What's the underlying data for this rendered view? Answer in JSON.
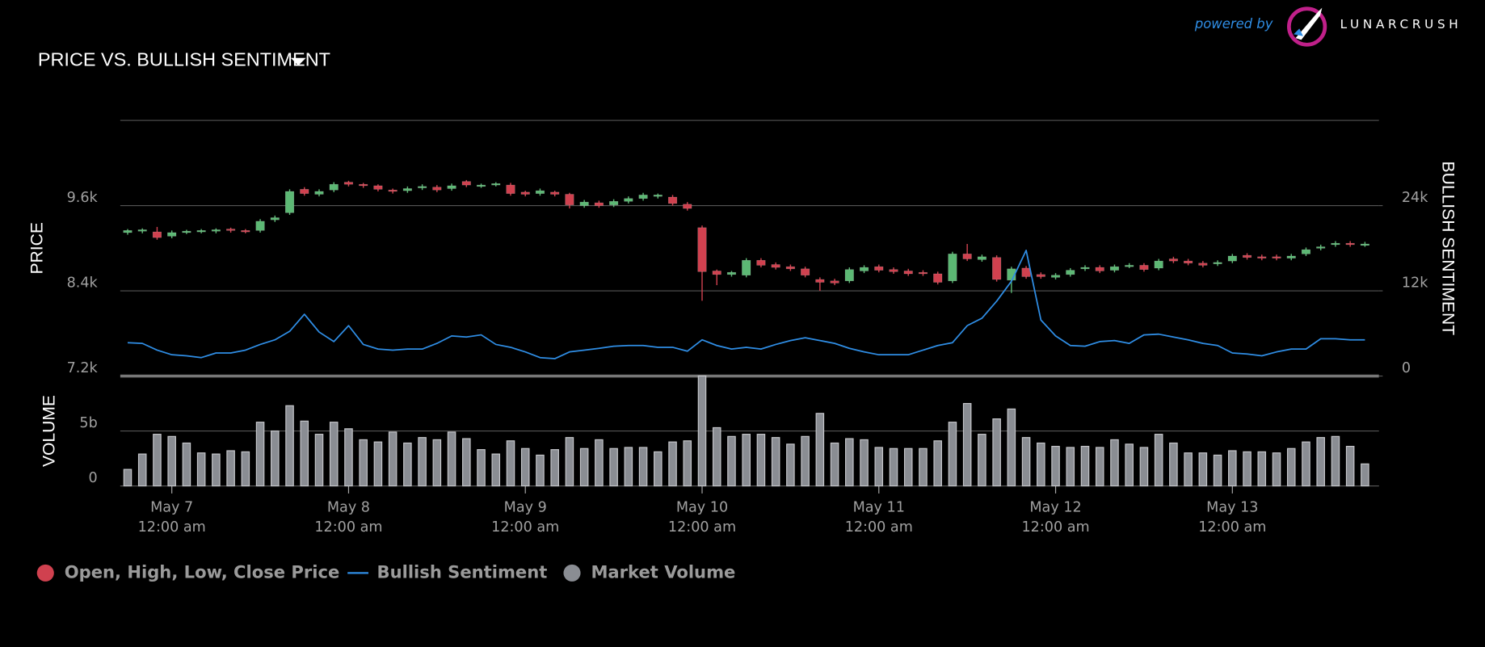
{
  "chart_data": {
    "type": "candlestick",
    "title": "PRICE VS. BULLISH SENTIMENT",
    "y_label": "PRICE",
    "y2_label": "BULLISH SENTIMENT",
    "volume_label": "VOLUME",
    "ylim": [
      7200,
      10800
    ],
    "yticks": [
      {
        "value": 7200,
        "label": "7.2k"
      },
      {
        "value": 8400,
        "label": "8.4k"
      },
      {
        "value": 9600,
        "label": "9.6k"
      }
    ],
    "y2lim": [
      0,
      36000
    ],
    "y2ticks": [
      0,
      {
        "value": 12000,
        "label": "12k"
      },
      {
        "value": 24000,
        "label": "24k"
      }
    ],
    "volume_lim": [
      0,
      10
    ],
    "volume_ticks": [
      0,
      {
        "value": 5,
        "label": "5b"
      }
    ],
    "xticks": [
      {
        "value": 3,
        "label": [
          "May 7",
          "12:00 am"
        ]
      },
      {
        "value": 15,
        "label": [
          "May 8",
          "12:00 am"
        ]
      },
      {
        "value": 27,
        "label": [
          "May 9",
          "12:00 am"
        ]
      },
      {
        "value": 39,
        "label": [
          "May 10",
          "12:00 am"
        ]
      },
      {
        "value": 51,
        "label": [
          "May 11",
          "12:00 am"
        ]
      },
      {
        "value": 63,
        "label": [
          "May 12",
          "12:00 am"
        ]
      },
      {
        "value": 75,
        "label": [
          "May 13",
          "12:00 am"
        ]
      }
    ],
    "series": [
      {
        "name": "Open, High, Low, Close Price",
        "type": "candlestick",
        "color": "#d0414f",
        "up_color": "#5cb874",
        "open": [
          9220,
          9240,
          9230,
          9170,
          9230,
          9235,
          9240,
          9270,
          9250,
          9250,
          9400,
          9500,
          9830,
          9760,
          9820,
          9930,
          9900,
          9880,
          9820,
          9810,
          9850,
          9860,
          9840,
          9940,
          9880,
          9900,
          9890,
          9790,
          9770,
          9790,
          9760,
          9600,
          9640,
          9610,
          9660,
          9700,
          9730,
          9720,
          9620,
          9290,
          8680,
          8630,
          8620,
          8830,
          8770,
          8740,
          8710,
          8560,
          8540,
          8540,
          8680,
          8740,
          8700,
          8680,
          8660,
          8640,
          8540,
          8920,
          8840,
          8870,
          8550,
          8720,
          8630,
          8590,
          8630,
          8710,
          8730,
          8690,
          8750,
          8760,
          8720,
          8850,
          8820,
          8790,
          8780,
          8820,
          8900,
          8880,
          8880,
          8860,
          8920,
          9000,
          9050,
          9070,
          9050
        ],
        "high": [
          9270,
          9280,
          9300,
          9250,
          9260,
          9270,
          9280,
          9290,
          9270,
          9410,
          9460,
          9830,
          9860,
          9830,
          9930,
          9950,
          9920,
          9900,
          9840,
          9870,
          9900,
          9890,
          9910,
          9960,
          9910,
          9930,
          9920,
          9810,
          9840,
          9810,
          9780,
          9680,
          9670,
          9690,
          9730,
          9780,
          9770,
          9750,
          9650,
          9320,
          8700,
          8680,
          8860,
          8860,
          8800,
          8770,
          8740,
          8590,
          8570,
          8730,
          8760,
          8770,
          8730,
          8710,
          8690,
          8670,
          8950,
          9060,
          8910,
          8900,
          8740,
          8750,
          8660,
          8650,
          8720,
          8760,
          8760,
          8770,
          8790,
          8790,
          8850,
          8880,
          8850,
          8820,
          8830,
          8920,
          8930,
          8910,
          8910,
          8920,
          9010,
          9050,
          9100,
          9100,
          9090
        ],
        "low": [
          9190,
          9210,
          9120,
          9140,
          9200,
          9210,
          9210,
          9220,
          9210,
          9220,
          9370,
          9470,
          9740,
          9730,
          9790,
          9870,
          9850,
          9800,
          9770,
          9780,
          9820,
          9790,
          9810,
          9860,
          9850,
          9870,
          9740,
          9730,
          9740,
          9730,
          9560,
          9570,
          9570,
          9580,
          9630,
          9670,
          9700,
          9600,
          9530,
          8260,
          8480,
          8600,
          8590,
          8730,
          8700,
          8680,
          8590,
          8400,
          8480,
          8510,
          8650,
          8660,
          8640,
          8610,
          8610,
          8490,
          8510,
          8820,
          8810,
          8530,
          8370,
          8570,
          8570,
          8560,
          8600,
          8680,
          8650,
          8660,
          8720,
          8670,
          8690,
          8790,
          8760,
          8730,
          8750,
          8790,
          8840,
          8830,
          8830,
          8830,
          8890,
          8970,
          9020,
          9020,
          9020
        ],
        "close": [
          9250,
          9260,
          9150,
          9220,
          9240,
          9250,
          9260,
          9250,
          9240,
          9380,
          9430,
          9800,
          9770,
          9800,
          9900,
          9900,
          9880,
          9830,
          9800,
          9840,
          9870,
          9820,
          9880,
          9890,
          9890,
          9910,
          9770,
          9760,
          9810,
          9760,
          9610,
          9650,
          9600,
          9660,
          9700,
          9750,
          9750,
          9630,
          9560,
          8670,
          8630,
          8660,
          8830,
          8760,
          8730,
          8710,
          8620,
          8520,
          8510,
          8700,
          8730,
          8690,
          8670,
          8640,
          8640,
          8520,
          8920,
          8850,
          8880,
          8560,
          8710,
          8600,
          8600,
          8620,
          8690,
          8730,
          8680,
          8740,
          8760,
          8700,
          8820,
          8820,
          8790,
          8760,
          8800,
          8890,
          8870,
          8860,
          8860,
          8890,
          8980,
          9020,
          9070,
          9050,
          9060
        ]
      },
      {
        "name": "Bullish Sentiment",
        "type": "line",
        "axis": "y2",
        "color": "#2f8de4",
        "values": [
          4700,
          4600,
          3650,
          3000,
          2850,
          2600,
          3250,
          3250,
          3650,
          4450,
          5100,
          6300,
          8700,
          6200,
          4850,
          7100,
          4450,
          3800,
          3650,
          3800,
          3800,
          4600,
          5650,
          5500,
          5800,
          4450,
          4050,
          3400,
          2600,
          2450,
          3400,
          3650,
          3900,
          4200,
          4300,
          4300,
          4050,
          4050,
          3500,
          5100,
          4300,
          3800,
          4050,
          3800,
          4450,
          5000,
          5400,
          5000,
          4600,
          3900,
          3400,
          3000,
          3000,
          3000,
          3650,
          4300,
          4700,
          7100,
          8150,
          10550,
          13350,
          17700,
          7900,
          5650,
          4300,
          4200,
          4850,
          5000,
          4600,
          5800,
          5900,
          5500,
          5100,
          4600,
          4300,
          3250,
          3100,
          2850,
          3400,
          3800,
          3800,
          5250,
          5250,
          5100,
          5100
        ]
      },
      {
        "name": "Market Volume",
        "type": "bar",
        "axis": "volume",
        "color": "#8a8d93",
        "values": [
          1.5,
          2.9,
          4.7,
          4.5,
          3.9,
          3.0,
          2.9,
          3.2,
          3.1,
          5.8,
          5.0,
          7.3,
          5.9,
          4.7,
          5.8,
          5.2,
          4.2,
          4.0,
          4.9,
          3.9,
          4.4,
          4.2,
          4.9,
          4.3,
          3.3,
          2.9,
          4.1,
          3.4,
          2.8,
          3.3,
          4.4,
          3.4,
          4.2,
          3.4,
          3.5,
          3.5,
          3.1,
          4.0,
          4.1,
          10.0,
          5.3,
          4.5,
          4.7,
          4.7,
          4.4,
          3.8,
          4.5,
          6.6,
          3.9,
          4.3,
          4.2,
          3.5,
          3.4,
          3.4,
          3.4,
          4.1,
          5.8,
          7.5,
          4.7,
          6.1,
          7.0,
          4.4,
          3.9,
          3.6,
          3.5,
          3.6,
          3.5,
          4.2,
          3.8,
          3.5,
          4.7,
          3.9,
          3.0,
          3.0,
          2.8,
          3.2,
          3.1,
          3.1,
          3.0,
          3.4,
          4.0,
          4.4,
          4.5,
          3.6,
          2.0
        ]
      }
    ]
  },
  "branding": {
    "powered_by": "powered by",
    "brand": "LUNARCRUSH"
  }
}
